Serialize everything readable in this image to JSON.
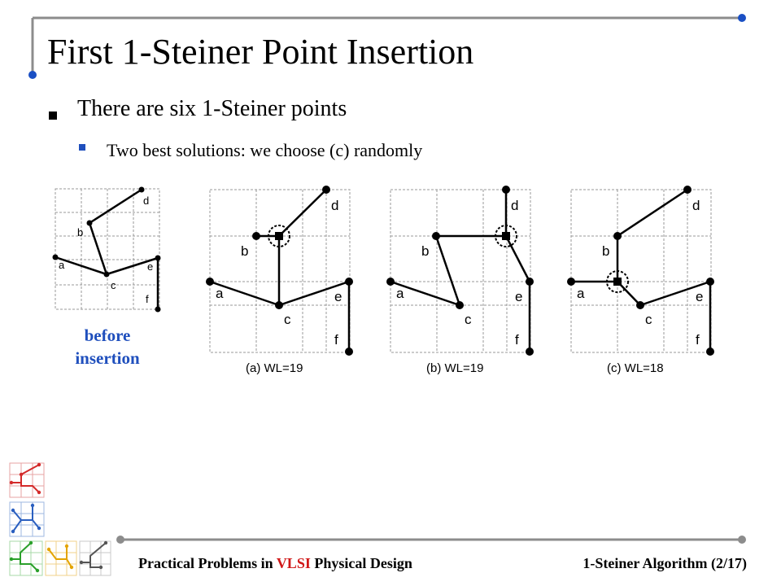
{
  "slide": {
    "title": "First 1-Steiner Point Insertion",
    "bullets": [
      {
        "text": "There are six 1-Steiner points"
      },
      {
        "text": "Two best solutions: we choose (c) randomly"
      }
    ],
    "before_caption_line1": "before",
    "before_caption_line2": "insertion"
  },
  "figures": [
    {
      "id": "before",
      "labels": [
        "a",
        "b",
        "c",
        "d",
        "e",
        "f"
      ]
    },
    {
      "id": "a",
      "caption": "(a) WL=19",
      "labels": [
        "a",
        "b",
        "c",
        "d",
        "e",
        "f"
      ]
    },
    {
      "id": "b",
      "caption": "(b) WL=19",
      "labels": [
        "a",
        "b",
        "c",
        "d",
        "e",
        "f"
      ]
    },
    {
      "id": "c",
      "caption": "(c) WL=18",
      "labels": [
        "a",
        "b",
        "c",
        "d",
        "e",
        "f"
      ]
    }
  ],
  "footer": {
    "left_prefix": "Practical Problems in ",
    "left_highlight": "VLSI",
    "left_suffix": " Physical Design",
    "right": "1-Steiner Algorithm (2/17)"
  },
  "colors": {
    "accent_blue": "#1f4fbd",
    "highlight_red": "#d01818",
    "rule_gray": "#8c8c8c",
    "rule_dot_blue": "#1a4fc4"
  }
}
